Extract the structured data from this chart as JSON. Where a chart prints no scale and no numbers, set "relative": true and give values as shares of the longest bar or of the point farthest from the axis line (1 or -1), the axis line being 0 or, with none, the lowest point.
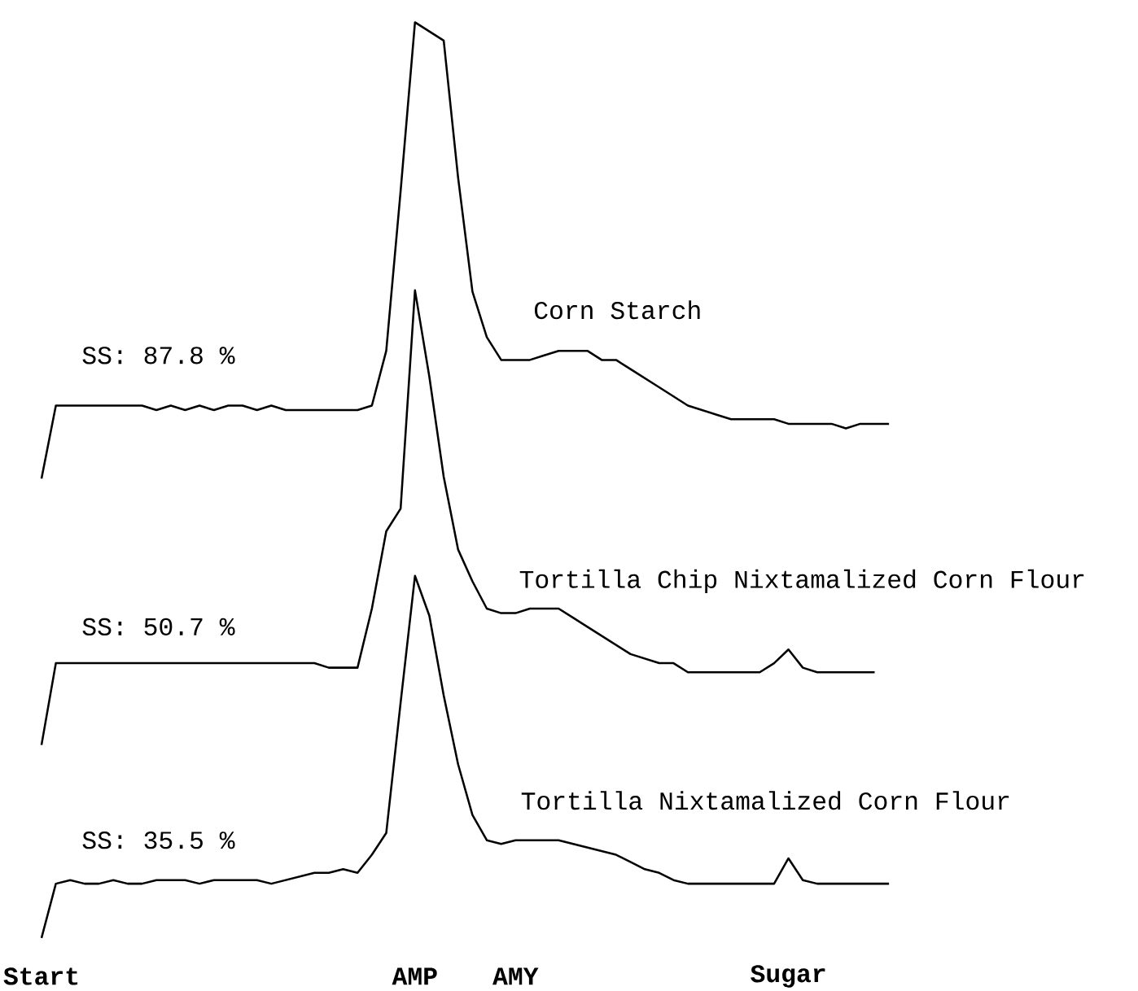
{
  "chart_data": [
    {
      "type": "line",
      "relative": true,
      "categories": [
        null,
        null,
        null,
        null,
        null,
        null,
        null,
        null,
        null,
        null,
        null,
        null,
        null,
        null,
        null,
        null,
        null,
        null,
        null,
        null,
        null,
        null,
        null,
        null,
        null,
        null,
        null,
        null,
        null,
        null,
        null,
        null,
        null,
        null,
        null,
        null,
        null,
        null,
        null,
        null,
        null,
        null,
        null,
        null,
        null,
        null,
        null,
        null,
        null,
        null,
        null,
        null,
        null,
        null,
        null,
        null,
        null,
        null,
        null,
        null
      ],
      "series": [
        {
          "name": "Corn Starch",
          "color": "#000000",
          "values": [
            0,
            0.16,
            0.16,
            0.16,
            0.16,
            0.16,
            0.16,
            0.16,
            0.15,
            0.16,
            0.15,
            0.16,
            0.15,
            0.16,
            0.16,
            0.15,
            0.16,
            0.15,
            0.15,
            0.15,
            0.15,
            0.15,
            0.15,
            0.16,
            0.28,
            0.63,
            1.0,
            0.98,
            0.96,
            0.66,
            0.41,
            0.31,
            0.26,
            0.26,
            0.26,
            0.27,
            0.28,
            0.28,
            0.28,
            0.26,
            0.26,
            0.24,
            0.22,
            0.2,
            0.18,
            0.16,
            0.15,
            0.14,
            0.13,
            0.13,
            0.13,
            0.13,
            0.12,
            0.12,
            0.12,
            0.12,
            0.11,
            0.12,
            0.12,
            0.12
          ]
        }
      ],
      "annotations": [
        "SS: 87.8 %"
      ]
    },
    {
      "type": "line",
      "relative": true,
      "categories": [
        null,
        null,
        null,
        null,
        null,
        null,
        null,
        null,
        null,
        null,
        null,
        null,
        null,
        null,
        null,
        null,
        null,
        null,
        null,
        null,
        null,
        null,
        null,
        null,
        null,
        null,
        null,
        null,
        null,
        null,
        null,
        null,
        null,
        null,
        null,
        null,
        null,
        null,
        null,
        null,
        null,
        null,
        null,
        null,
        null,
        null,
        null,
        null,
        null,
        null,
        null,
        null,
        null,
        null,
        null,
        null,
        null,
        null,
        null,
        null
      ],
      "series": [
        {
          "name": "Tortilla Chip Nixtamalized Corn Flour",
          "color": "#000000",
          "values": [
            0,
            0.18,
            0.18,
            0.18,
            0.18,
            0.18,
            0.18,
            0.18,
            0.18,
            0.18,
            0.18,
            0.18,
            0.18,
            0.18,
            0.18,
            0.18,
            0.18,
            0.18,
            0.18,
            0.18,
            0.17,
            0.17,
            0.17,
            0.3,
            0.47,
            0.52,
            1.0,
            0.81,
            0.59,
            0.43,
            0.36,
            0.3,
            0.29,
            0.29,
            0.3,
            0.3,
            0.3,
            0.28,
            0.26,
            0.24,
            0.22,
            0.2,
            0.19,
            0.18,
            0.18,
            0.16,
            0.16,
            0.16,
            0.16,
            0.16,
            0.16,
            0.18,
            0.21,
            0.17,
            0.16,
            0.16,
            0.16,
            0.16,
            0.16,
            null
          ]
        }
      ],
      "annotations": [
        "SS: 50.7 %"
      ]
    },
    {
      "type": "line",
      "relative": true,
      "tick_labels": "x",
      "categories": [
        "Start",
        null,
        null,
        null,
        null,
        null,
        null,
        null,
        null,
        null,
        null,
        null,
        null,
        null,
        null,
        null,
        null,
        null,
        null,
        null,
        null,
        null,
        null,
        null,
        null,
        null,
        "AMP",
        null,
        null,
        null,
        null,
        null,
        null,
        "AMY",
        null,
        null,
        null,
        null,
        null,
        null,
        null,
        null,
        null,
        null,
        null,
        null,
        null,
        null,
        null,
        null,
        null,
        null,
        "Sugar",
        null,
        null,
        null,
        null,
        null,
        null,
        null
      ],
      "series": [
        {
          "name": "Tortilla Nixtamalized Corn Flour",
          "color": "#000000",
          "values": [
            0,
            0.15,
            0.16,
            0.15,
            0.15,
            0.16,
            0.15,
            0.15,
            0.16,
            0.16,
            0.16,
            0.15,
            0.16,
            0.16,
            0.16,
            0.16,
            0.15,
            0.16,
            0.17,
            0.18,
            0.18,
            0.19,
            0.18,
            0.23,
            0.29,
            0.65,
            1.0,
            0.89,
            0.67,
            0.48,
            0.34,
            0.27,
            0.26,
            0.27,
            0.27,
            0.27,
            0.27,
            0.26,
            0.25,
            0.24,
            0.23,
            0.21,
            0.19,
            0.18,
            0.16,
            0.15,
            0.15,
            0.15,
            0.15,
            0.15,
            0.15,
            0.15,
            0.22,
            0.16,
            0.15,
            0.15,
            0.15,
            0.15,
            0.15,
            0.15
          ]
        }
      ],
      "annotations": [
        "SS: 35.5 %"
      ]
    }
  ]
}
